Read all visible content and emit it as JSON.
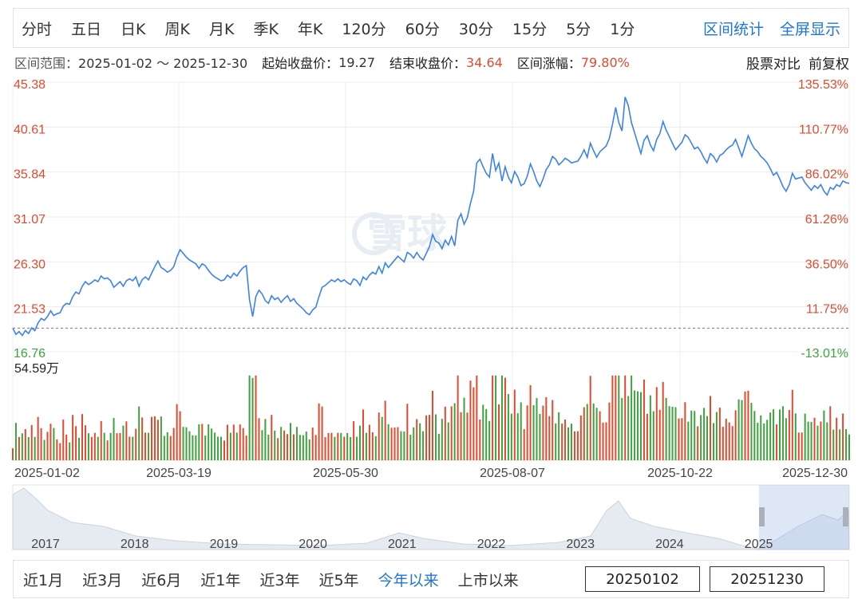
{
  "period_tabs": [
    "分时",
    "五日",
    "日K",
    "周K",
    "月K",
    "季K",
    "年K",
    "120分",
    "60分",
    "30分",
    "15分",
    "5分",
    "1分"
  ],
  "top_links": [
    "区间统计",
    "全屏显示"
  ],
  "info": {
    "range_label": "区间范围：",
    "range_value": "2025-01-02 ～ 2025-12-30",
    "start_label": "起始收盘价：",
    "start_value": "19.27",
    "end_label": "结束收盘价：",
    "end_value": "34.64",
    "chg_label": "区间涨幅：",
    "chg_value": "79.80%",
    "compare": "股票对比",
    "adjust": "前复权"
  },
  "watermark": "雪球",
  "volume_label": "54.59万",
  "range_buttons": [
    "近1月",
    "近3月",
    "近6月",
    "近1年",
    "近3年",
    "近5年",
    "今年以来",
    "上市以来"
  ],
  "active_range": "今年以来",
  "date_from": "20250102",
  "date_to": "20251230",
  "colors": {
    "line": "#3b82f0",
    "up": "#e04a2f",
    "down": "#3fa13f",
    "grid": "#ececec",
    "axis_left": "#e04a2f"
  },
  "chart_data": {
    "type": "line",
    "price_ticks": [
      "45.38",
      "40.61",
      "35.84",
      "31.07",
      "26.30",
      "21.53",
      "16.76"
    ],
    "pct_ticks": [
      "135.53%",
      "110.77%",
      "86.02%",
      "61.26%",
      "36.50%",
      "11.75%",
      "-13.01%"
    ],
    "ylim": [
      16.76,
      45.38
    ],
    "base_price": 19.27,
    "x_ticks": [
      "2025-01-02",
      "2025-03-19",
      "2025-05-30",
      "2025-08-07",
      "2025-10-22",
      "2025-12-30"
    ],
    "price_series": [
      19.27,
      18.6,
      18.9,
      18.5,
      19.0,
      18.7,
      19.3,
      19.0,
      19.8,
      20.3,
      20.1,
      20.5,
      21.1,
      20.6,
      20.8,
      20.9,
      21.6,
      21.9,
      21.8,
      22.6,
      23.1,
      22.9,
      23.7,
      24.2,
      23.9,
      24.1,
      24.4,
      24.2,
      24.8,
      24.5,
      24.6,
      24.3,
      23.6,
      23.9,
      24.2,
      23.7,
      24.3,
      24.5,
      24.3,
      24.7,
      23.7,
      24.4,
      24.7,
      24.4,
      25.1,
      25.8,
      26.4,
      25.7,
      25.5,
      25.2,
      25.4,
      25.8,
      26.8,
      27.6,
      27.2,
      26.8,
      26.5,
      26.3,
      26.1,
      25.6,
      26.1,
      25.9,
      25.4,
      25.0,
      24.7,
      24.5,
      24.3,
      24.4,
      24.9,
      24.6,
      25.1,
      24.8,
      25.3,
      25.7,
      25.9,
      22.3,
      20.5,
      22.6,
      23.3,
      22.9,
      22.2,
      21.9,
      22.7,
      22.3,
      22.5,
      22.0,
      22.4,
      22.7,
      22.1,
      22.4,
      21.9,
      21.6,
      21.3,
      20.9,
      20.7,
      21.2,
      21.5,
      22.6,
      23.6,
      23.8,
      24.1,
      24.4,
      24.2,
      24.5,
      24.2,
      24.4,
      24.1,
      23.9,
      24.5,
      24.3,
      23.8,
      24.7,
      24.4,
      24.9,
      25.2,
      25.0,
      25.8,
      25.1,
      26.2,
      25.7,
      26.1,
      26.5,
      26.9,
      26.6,
      26.3,
      27.3,
      27.1,
      26.7,
      27.3,
      26.8,
      26.5,
      27.2,
      27.9,
      29.2,
      28.5,
      28.3,
      27.7,
      28.6,
      28.1,
      29.0,
      28.0,
      30.7,
      31.4,
      30.3,
      31.0,
      32.5,
      33.8,
      36.8,
      37.2,
      36.4,
      35.7,
      35.3,
      37.8,
      36.0,
      36.8,
      34.9,
      36.4,
      35.3,
      34.7,
      35.9,
      35.3,
      34.4,
      34.6,
      35.4,
      36.7,
      35.9,
      34.9,
      34.3,
      35.1,
      36.1,
      36.6,
      37.5,
      37.2,
      36.6,
      36.9,
      37.3,
      37.1,
      36.8,
      36.9,
      37.0,
      37.5,
      38.2,
      37.4,
      38.9,
      38.1,
      37.4,
      38.0,
      38.3,
      38.6,
      39.4,
      40.9,
      42.7,
      41.1,
      40.2,
      43.8,
      42.9,
      41.1,
      40.0,
      38.9,
      37.8,
      39.2,
      39.7,
      38.7,
      38.1,
      39.3,
      39.9,
      41.2,
      40.3,
      39.6,
      38.9,
      38.2,
      38.6,
      39.0,
      39.8,
      39.5,
      38.9,
      38.3,
      38.5,
      38.0,
      37.3,
      36.8,
      37.8,
      37.5,
      36.9,
      37.6,
      37.8,
      38.2,
      38.5,
      38.7,
      39.3,
      38.4,
      37.5,
      38.6,
      39.7,
      38.9,
      38.3,
      38.0,
      37.5,
      37.2,
      36.8,
      36.2,
      35.5,
      35.8,
      35.1,
      34.3,
      33.8,
      34.5,
      35.7,
      35.1,
      35.2,
      35.3,
      34.7,
      34.3,
      33.9,
      34.4,
      34.1,
      34.5,
      33.8,
      33.4,
      34.2,
      34.0,
      34.5,
      34.3,
      34.9,
      34.7,
      34.64
    ]
  }
}
